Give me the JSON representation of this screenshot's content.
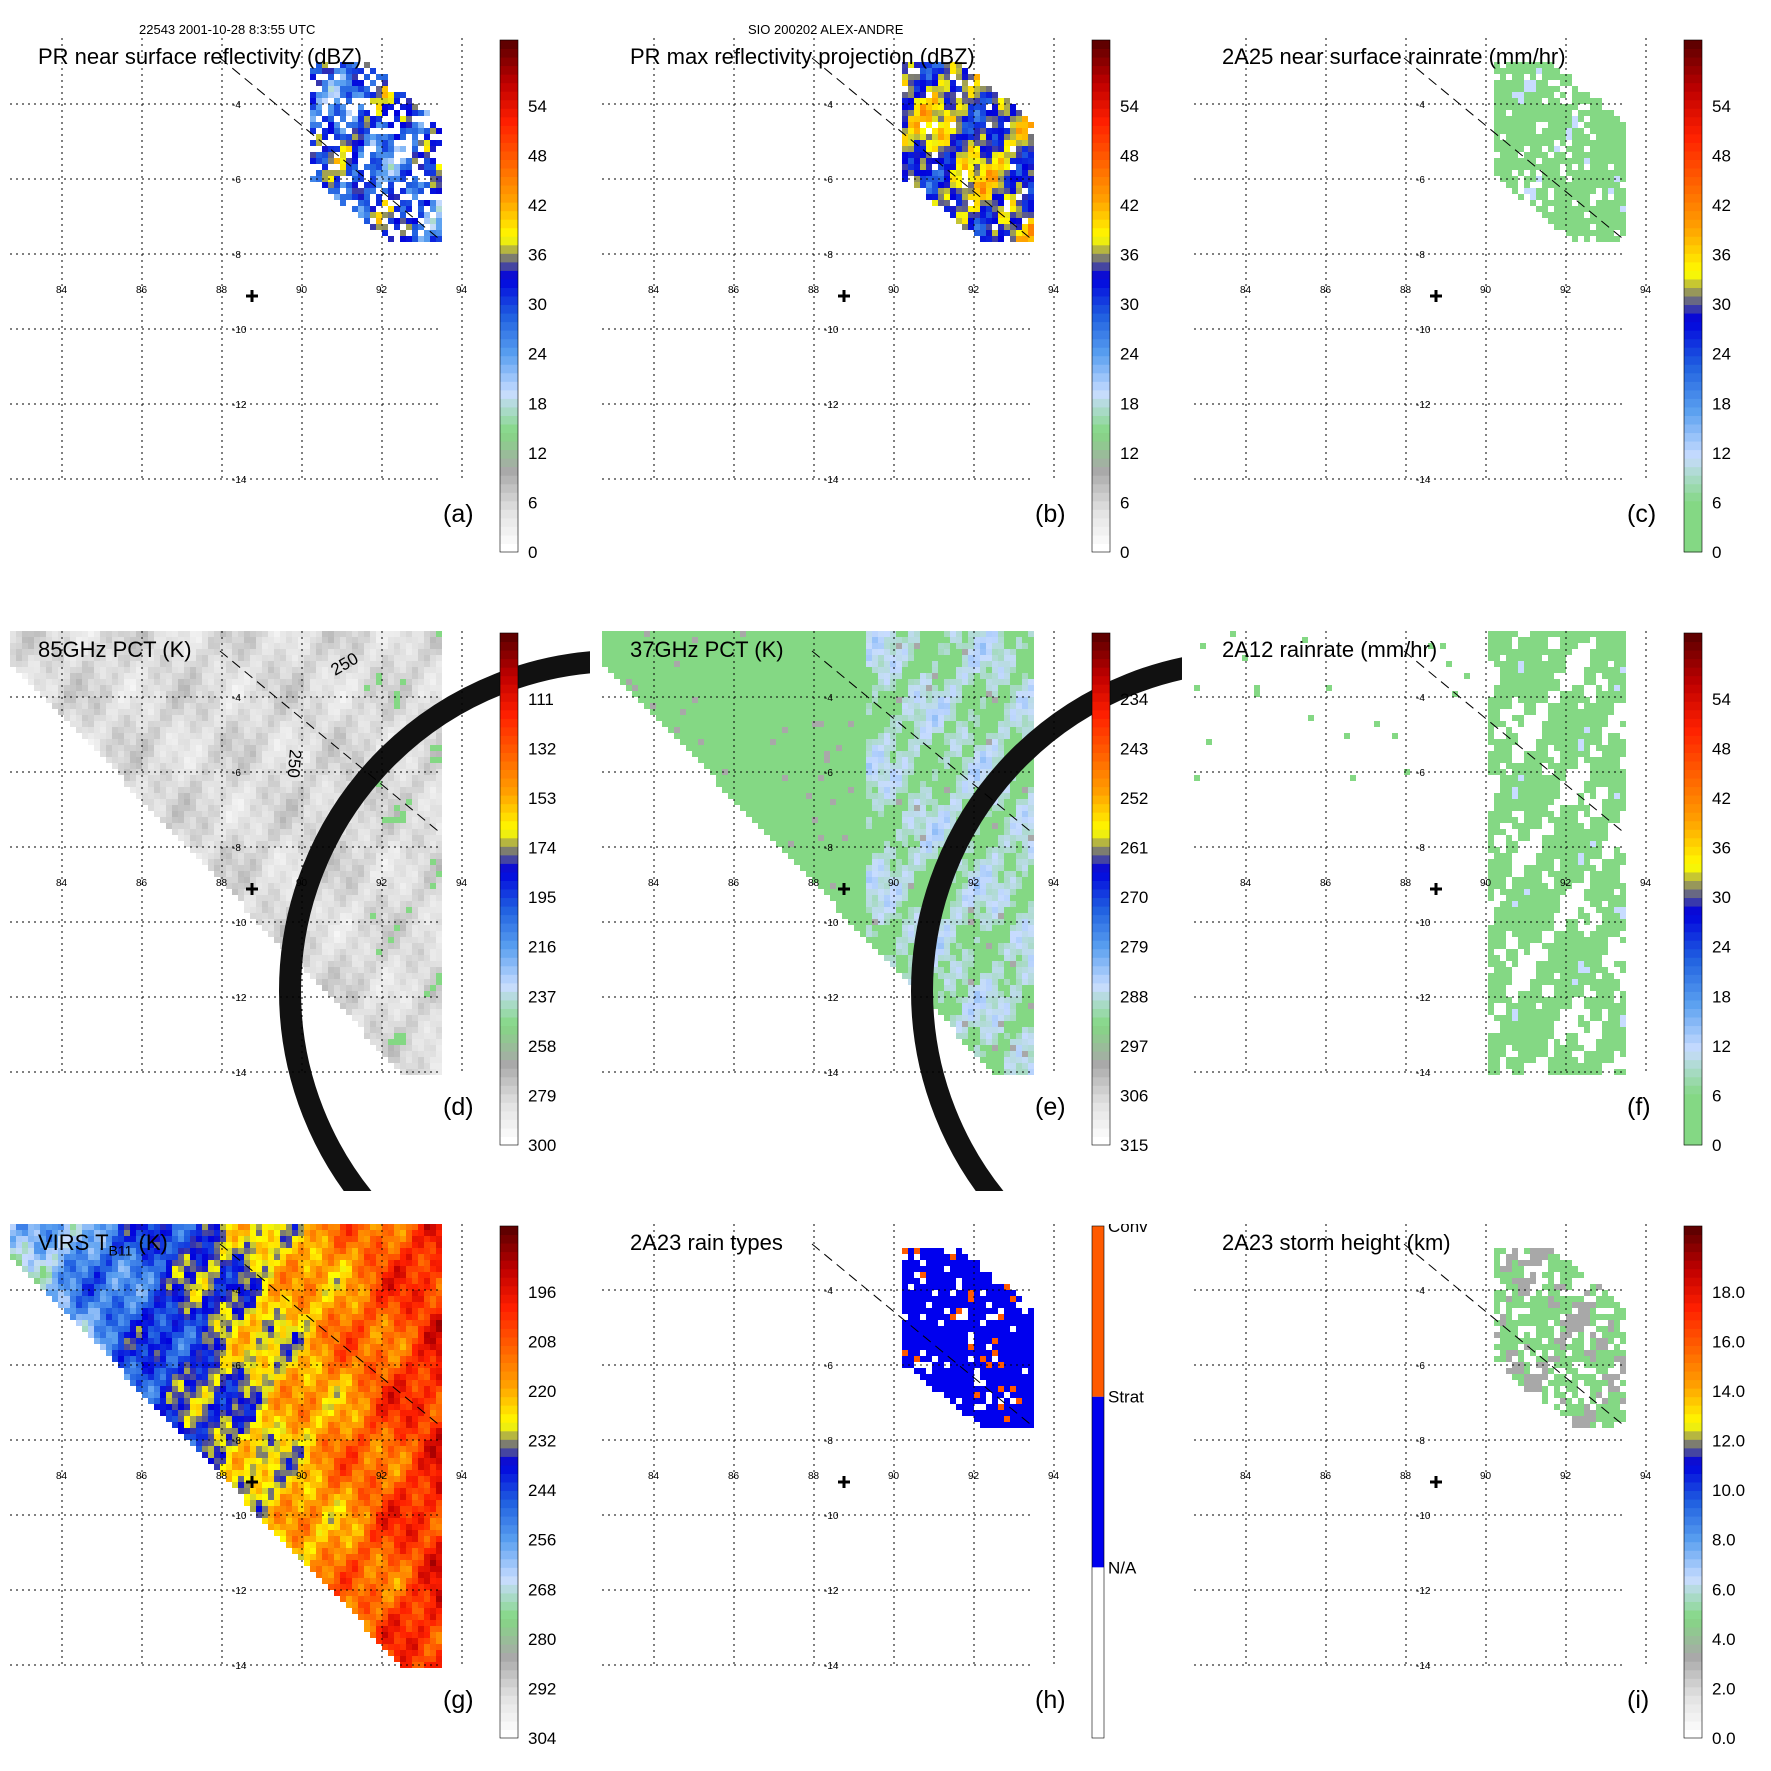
{
  "header": {
    "orbit_time": "22543 2001-10-28 8:3:55 UTC",
    "storm_id": "SIO 200202 ALEX-ANDRE"
  },
  "chart_data": [
    {
      "id": "a",
      "type": "heatmap",
      "panel_label": "(a)",
      "title": "PR near surface reflectivity (dBZ)",
      "swath": "pr",
      "fill": "pr-reflectivity",
      "colorbar": {
        "type": "continuous",
        "vmin": 0,
        "vmax": 60,
        "ticks": [
          "0",
          "6",
          "12",
          "18",
          "24",
          "30",
          "36",
          "42",
          "48",
          "54"
        ],
        "ramp": [
          "#ffffff",
          "#e0e0e0",
          "#a8a8a8",
          "#84d884",
          "#c8dcff",
          "#5aa0f0",
          "#1f5fe0",
          "#0000dd",
          "#ffff00",
          "#ffa000",
          "#ff6000",
          "#ff2000",
          "#c00000",
          "#600000"
        ]
      },
      "lon_ticks": [
        "84",
        "86",
        "88",
        "90",
        "92",
        "94"
      ],
      "lat_ticks": [
        "-4",
        "-6",
        "-8",
        "-10",
        "-12",
        "-14"
      ],
      "storm_center": {
        "lon": 88.8,
        "lat": -8.1
      }
    },
    {
      "id": "b",
      "type": "heatmap",
      "panel_label": "(b)",
      "title": "PR max reflectivity projection (dBZ)",
      "swath": "pr",
      "fill": "pr-max",
      "colorbar": {
        "type": "continuous",
        "vmin": 0,
        "vmax": 60,
        "ticks": [
          "0",
          "6",
          "12",
          "18",
          "24",
          "30",
          "36",
          "42",
          "48",
          "54"
        ],
        "ramp": [
          "#ffffff",
          "#e0e0e0",
          "#a8a8a8",
          "#84d884",
          "#c8dcff",
          "#5aa0f0",
          "#1f5fe0",
          "#0000dd",
          "#ffff00",
          "#ffa000",
          "#ff6000",
          "#ff2000",
          "#c00000",
          "#600000"
        ]
      },
      "lon_ticks": [
        "84",
        "86",
        "88",
        "90",
        "92",
        "94"
      ],
      "lat_ticks": [
        "-4",
        "-6",
        "-8",
        "-10",
        "-12",
        "-14"
      ],
      "storm_center": {
        "lon": 88.8,
        "lat": -8.1
      }
    },
    {
      "id": "c",
      "type": "heatmap",
      "panel_label": "(c)",
      "title": "2A25 near surface rainrate (mm/hr)",
      "swath": "pr",
      "fill": "pr-rain",
      "colorbar": {
        "type": "continuous",
        "vmin": 0,
        "vmax": 60,
        "ticks": [
          "0",
          "6",
          "12",
          "18",
          "24",
          "30",
          "36",
          "42",
          "48",
          "54"
        ],
        "ramp": [
          "#84d884",
          "#84d884",
          "#c8dcff",
          "#5aa0f0",
          "#1f5fe0",
          "#0000dd",
          "#ffff00",
          "#ffa000",
          "#ff6000",
          "#ff2000",
          "#c00000",
          "#600000"
        ]
      },
      "lon_ticks": [
        "84",
        "86",
        "88",
        "90",
        "92",
        "94"
      ],
      "lat_ticks": [
        "-4",
        "-6",
        "-8",
        "-10",
        "-12",
        "-14"
      ],
      "storm_center": {
        "lon": 88.8,
        "lat": -8.1
      }
    },
    {
      "id": "d",
      "type": "heatmap",
      "panel_label": "(d)",
      "title": "85GHz PCT (K)",
      "swath": "tmi",
      "fill": "pct85",
      "colorbar": {
        "type": "continuous",
        "vmin": 90,
        "vmax": 300,
        "ticks": [
          "300",
          "279",
          "258",
          "237",
          "216",
          "195",
          "174",
          "153",
          "132",
          "111"
        ],
        "ramp": [
          "#ffffff",
          "#e0e0e0",
          "#a8a8a8",
          "#84d884",
          "#c8dcff",
          "#5aa0f0",
          "#1f5fe0",
          "#0000dd",
          "#ffff00",
          "#ffa000",
          "#ff6000",
          "#ff2000",
          "#c00000",
          "#600000"
        ]
      },
      "lon_ticks": [
        "84",
        "86",
        "88",
        "90",
        "92",
        "94"
      ],
      "lat_ticks": [
        "-4",
        "-6",
        "-8",
        "-10",
        "-12",
        "-14"
      ],
      "storm_center": {
        "lon": 88.8,
        "lat": -8.1
      },
      "annotations": [
        "250",
        "250"
      ]
    },
    {
      "id": "e",
      "type": "heatmap",
      "panel_label": "(e)",
      "title": "37GHz PCT (K)",
      "swath": "tmi",
      "fill": "pct37",
      "colorbar": {
        "type": "continuous",
        "vmin": 225,
        "vmax": 315,
        "ticks": [
          "315",
          "306",
          "297",
          "288",
          "279",
          "270",
          "261",
          "252",
          "243",
          "234"
        ],
        "ramp": [
          "#ffffff",
          "#e0e0e0",
          "#a8a8a8",
          "#84d884",
          "#c8dcff",
          "#5aa0f0",
          "#1f5fe0",
          "#0000dd",
          "#ffff00",
          "#ffa000",
          "#ff6000",
          "#ff2000",
          "#c00000",
          "#600000"
        ]
      },
      "lon_ticks": [
        "84",
        "86",
        "88",
        "90",
        "92",
        "94"
      ],
      "lat_ticks": [
        "-4",
        "-6",
        "-8",
        "-10",
        "-12",
        "-14"
      ],
      "storm_center": {
        "lon": 88.8,
        "lat": -8.1
      }
    },
    {
      "id": "f",
      "type": "heatmap",
      "panel_label": "(f)",
      "title": "2A12 rainrate (mm/hr)",
      "swath": "rain12",
      "fill": "rain12",
      "colorbar": {
        "type": "continuous",
        "vmin": 0,
        "vmax": 60,
        "ticks": [
          "0",
          "6",
          "12",
          "18",
          "24",
          "30",
          "36",
          "42",
          "48",
          "54"
        ],
        "ramp": [
          "#84d884",
          "#84d884",
          "#c8dcff",
          "#5aa0f0",
          "#1f5fe0",
          "#0000dd",
          "#ffff00",
          "#ffa000",
          "#ff6000",
          "#ff2000",
          "#c00000",
          "#600000"
        ]
      },
      "lon_ticks": [
        "84",
        "86",
        "88",
        "90",
        "92",
        "94"
      ],
      "lat_ticks": [
        "-4",
        "-6",
        "-8",
        "-10",
        "-12",
        "-14"
      ],
      "storm_center": {
        "lon": 88.8,
        "lat": -8.1
      }
    },
    {
      "id": "g",
      "type": "heatmap",
      "panel_label": "(g)",
      "title_main": "VIRS T",
      "title_sub": "B11",
      "title_unit": " (K)",
      "swath": "virs",
      "fill": "virs",
      "colorbar": {
        "type": "continuous",
        "vmin": 184,
        "vmax": 304,
        "ticks": [
          "304",
          "292",
          "280",
          "268",
          "256",
          "244",
          "232",
          "220",
          "208",
          "196"
        ],
        "ramp": [
          "#ffffff",
          "#e0e0e0",
          "#a8a8a8",
          "#84d884",
          "#c8dcff",
          "#5aa0f0",
          "#1f5fe0",
          "#0000dd",
          "#ffff00",
          "#ffa000",
          "#ff6000",
          "#ff2000",
          "#c00000",
          "#600000"
        ]
      },
      "lon_ticks": [
        "84",
        "86",
        "88",
        "90",
        "92",
        "94"
      ],
      "lat_ticks": [
        "-4",
        "-6",
        "-8",
        "-10",
        "-12",
        "-14"
      ],
      "storm_center": {
        "lon": 88.8,
        "lat": -8.1
      }
    },
    {
      "id": "h",
      "type": "heatmap",
      "panel_label": "(h)",
      "title": "2A23 rain types",
      "swath": "pr",
      "fill": "raintype",
      "colorbar": {
        "type": "categorical",
        "categories": [
          "N/A",
          "Strat",
          "Conv"
        ],
        "colors": [
          "#ffffff",
          "#0000ee",
          "#ff5a00"
        ]
      },
      "lon_ticks": [
        "84",
        "86",
        "88",
        "90",
        "92",
        "94"
      ],
      "lat_ticks": [
        "-4",
        "-6",
        "-8",
        "-10",
        "-12",
        "-14"
      ],
      "storm_center": {
        "lon": 88.8,
        "lat": -8.1
      }
    },
    {
      "id": "i",
      "type": "heatmap",
      "panel_label": "(i)",
      "title": "2A23 storm height (km)",
      "swath": "pr",
      "fill": "height",
      "colorbar": {
        "type": "continuous",
        "vmin": 0,
        "vmax": 20,
        "ticks": [
          "0.0",
          "2.0",
          "4.0",
          "6.0",
          "8.0",
          "10.0",
          "12.0",
          "14.0",
          "16.0",
          "18.0"
        ],
        "ramp": [
          "#ffffff",
          "#e0e0e0",
          "#a8a8a8",
          "#84d884",
          "#c8dcff",
          "#5aa0f0",
          "#1f5fe0",
          "#0000dd",
          "#ffff00",
          "#ffa000",
          "#ff6000",
          "#ff2000",
          "#c00000",
          "#600000"
        ]
      },
      "lon_ticks": [
        "84",
        "86",
        "88",
        "90",
        "92",
        "94"
      ],
      "lat_ticks": [
        "-4",
        "-6",
        "-8",
        "-10",
        "-12",
        "-14"
      ],
      "storm_center": {
        "lon": 88.8,
        "lat": -8.1
      }
    }
  ]
}
